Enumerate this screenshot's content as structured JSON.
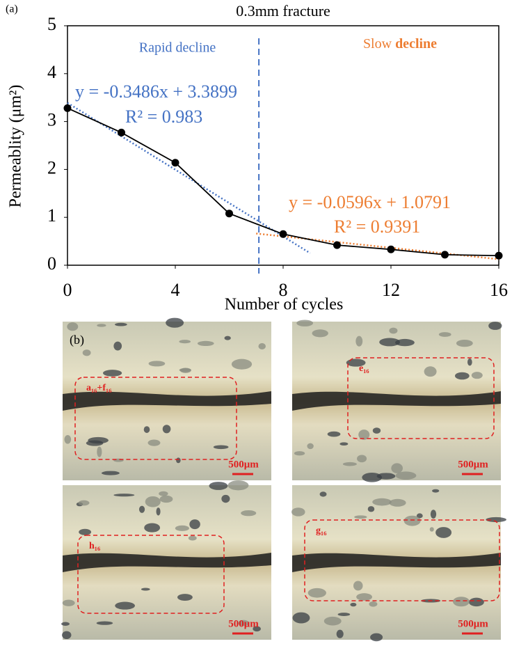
{
  "chart_data": {
    "type": "line",
    "panel_label": "(a)",
    "title": "0.3mm fracture",
    "x_label": "Number of cycles",
    "y_label": "Permeablity (μm²)",
    "x": [
      0,
      2,
      4,
      6,
      8,
      10,
      12,
      14,
      16
    ],
    "series": [
      {
        "color": "#000000",
        "values": [
          3.28,
          2.77,
          2.14,
          1.08,
          0.65,
          0.42,
          0.33,
          0.22,
          0.2
        ]
      }
    ],
    "xlim": [
      0,
      16
    ],
    "xticks": [
      0,
      4,
      8,
      12,
      16
    ],
    "ylim": [
      0,
      5
    ],
    "yticks": [
      0,
      1,
      2,
      3,
      4,
      5
    ],
    "divider_x": 7.1,
    "divider_color": "#4472c4",
    "rapid_label": "Rapid decline",
    "slow_label": "Slow",
    "slow_label_bold": "decline",
    "trendlines": [
      {
        "color": "#4472c4",
        "x": [
          0,
          9
        ],
        "values": [
          3.3899,
          0.2525
        ],
        "equation": "y = -0.3486x + 3.3899",
        "r2": "R² = 0.983"
      },
      {
        "color": "#ed7d31",
        "x": [
          7,
          16
        ],
        "values": [
          0.6619,
          0.1255
        ],
        "equation": "y = -0.0596x + 1.0791",
        "r2": "R² = 0.9391"
      }
    ]
  },
  "images": {
    "panel_label": "(b)",
    "panels": [
      {
        "label": "a₁₆+f₁₆",
        "scale": "500μm"
      },
      {
        "label": "e₁₆",
        "scale": "500μm"
      },
      {
        "label": "h₁₆",
        "scale": "500μm"
      },
      {
        "label": "g₁₆",
        "scale": "500μm"
      }
    ]
  }
}
